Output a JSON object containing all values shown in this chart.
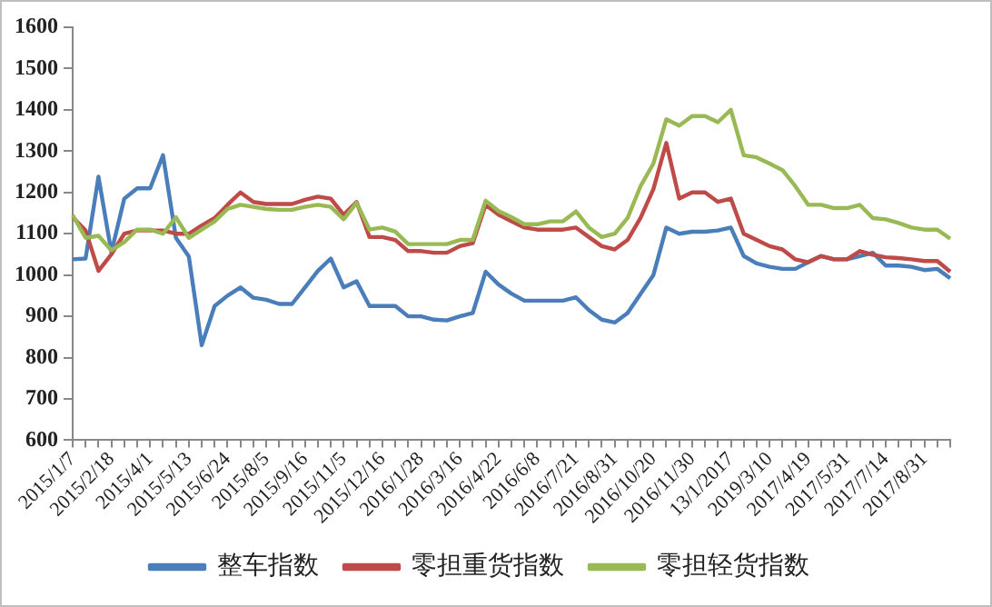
{
  "chart_data": {
    "type": "line",
    "categories": [
      "2015/1/7",
      null,
      null,
      "2015/2/18",
      null,
      null,
      "2015/4/1",
      null,
      null,
      "2015/5/13",
      null,
      null,
      "2015/6/24",
      null,
      null,
      "2015/8/5",
      null,
      null,
      "2015/9/16",
      null,
      null,
      "2015/11/5",
      null,
      null,
      "2015/12/16",
      null,
      null,
      "2016/1/28",
      null,
      null,
      "2016/3/16",
      null,
      null,
      "2016/4/22",
      null,
      null,
      "2016/6/8",
      null,
      null,
      "2016/7/21",
      null,
      null,
      "2016/8/31",
      null,
      null,
      "2016/10/20",
      null,
      null,
      "2016/11/30",
      null,
      null,
      "13/1/2017",
      null,
      null,
      "2019/3/10",
      null,
      null,
      "2017/4/19",
      null,
      null,
      "2017/5/31",
      null,
      null,
      "2017/7/14",
      null,
      null,
      "2017/8/31",
      null,
      null
    ],
    "series": [
      {
        "name": "整车指数",
        "color": "#4a7ebb",
        "values": [
          1038,
          1040,
          1238,
          1055,
          1185,
          1210,
          1210,
          1290,
          1090,
          1045,
          830,
          925,
          950,
          970,
          945,
          940,
          930,
          930,
          970,
          1010,
          1040,
          970,
          985,
          925,
          925,
          925,
          900,
          900,
          892,
          890,
          900,
          908,
          1008,
          977,
          955,
          938,
          938,
          938,
          938,
          946,
          915,
          892,
          885,
          908,
          954,
          1000,
          1115,
          1100,
          1105,
          1105,
          1108,
          1115,
          1046,
          1028,
          1020,
          1015,
          1015,
          1031,
          1046,
          1038,
          1038,
          1046,
          1054,
          1023,
          1023,
          1020,
          1012,
          1015,
          992
        ]
      },
      {
        "name": "零担重货指数",
        "color": "#be4b48",
        "values": [
          1140,
          1108,
          1010,
          1050,
          1100,
          1108,
          1108,
          1108,
          1100,
          1100,
          1120,
          1138,
          1170,
          1200,
          1177,
          1172,
          1172,
          1172,
          1182,
          1190,
          1185,
          1146,
          1177,
          1092,
          1092,
          1085,
          1058,
          1058,
          1054,
          1054,
          1070,
          1077,
          1170,
          1146,
          1130,
          1115,
          1110,
          1110,
          1110,
          1115,
          1092,
          1070,
          1062,
          1085,
          1138,
          1208,
          1320,
          1185,
          1200,
          1200,
          1177,
          1185,
          1100,
          1085,
          1070,
          1062,
          1038,
          1031,
          1046,
          1038,
          1038,
          1058,
          1049,
          1043,
          1041,
          1038,
          1034,
          1034,
          1008
        ]
      },
      {
        "name": "零担轻货指数",
        "color": "#98b954",
        "values": [
          1145,
          1090,
          1095,
          1060,
          1080,
          1110,
          1110,
          1100,
          1140,
          1090,
          1110,
          1130,
          1160,
          1170,
          1165,
          1160,
          1158,
          1158,
          1165,
          1170,
          1165,
          1135,
          1175,
          1110,
          1115,
          1105,
          1075,
          1075,
          1075,
          1075,
          1085,
          1085,
          1180,
          1155,
          1140,
          1123,
          1123,
          1130,
          1130,
          1154,
          1115,
          1092,
          1100,
          1138,
          1215,
          1270,
          1377,
          1362,
          1385,
          1385,
          1370,
          1400,
          1290,
          1285,
          1270,
          1254,
          1215,
          1170,
          1170,
          1162,
          1162,
          1170,
          1138,
          1135,
          1126,
          1115,
          1110,
          1110,
          1088
        ]
      }
    ],
    "ylim": [
      600,
      1600
    ],
    "yticks": [
      600,
      700,
      800,
      900,
      1000,
      1100,
      1200,
      1300,
      1400,
      1500,
      1600
    ],
    "grid": false,
    "legend": "bottom",
    "marker": "none",
    "line_style": "solid"
  }
}
